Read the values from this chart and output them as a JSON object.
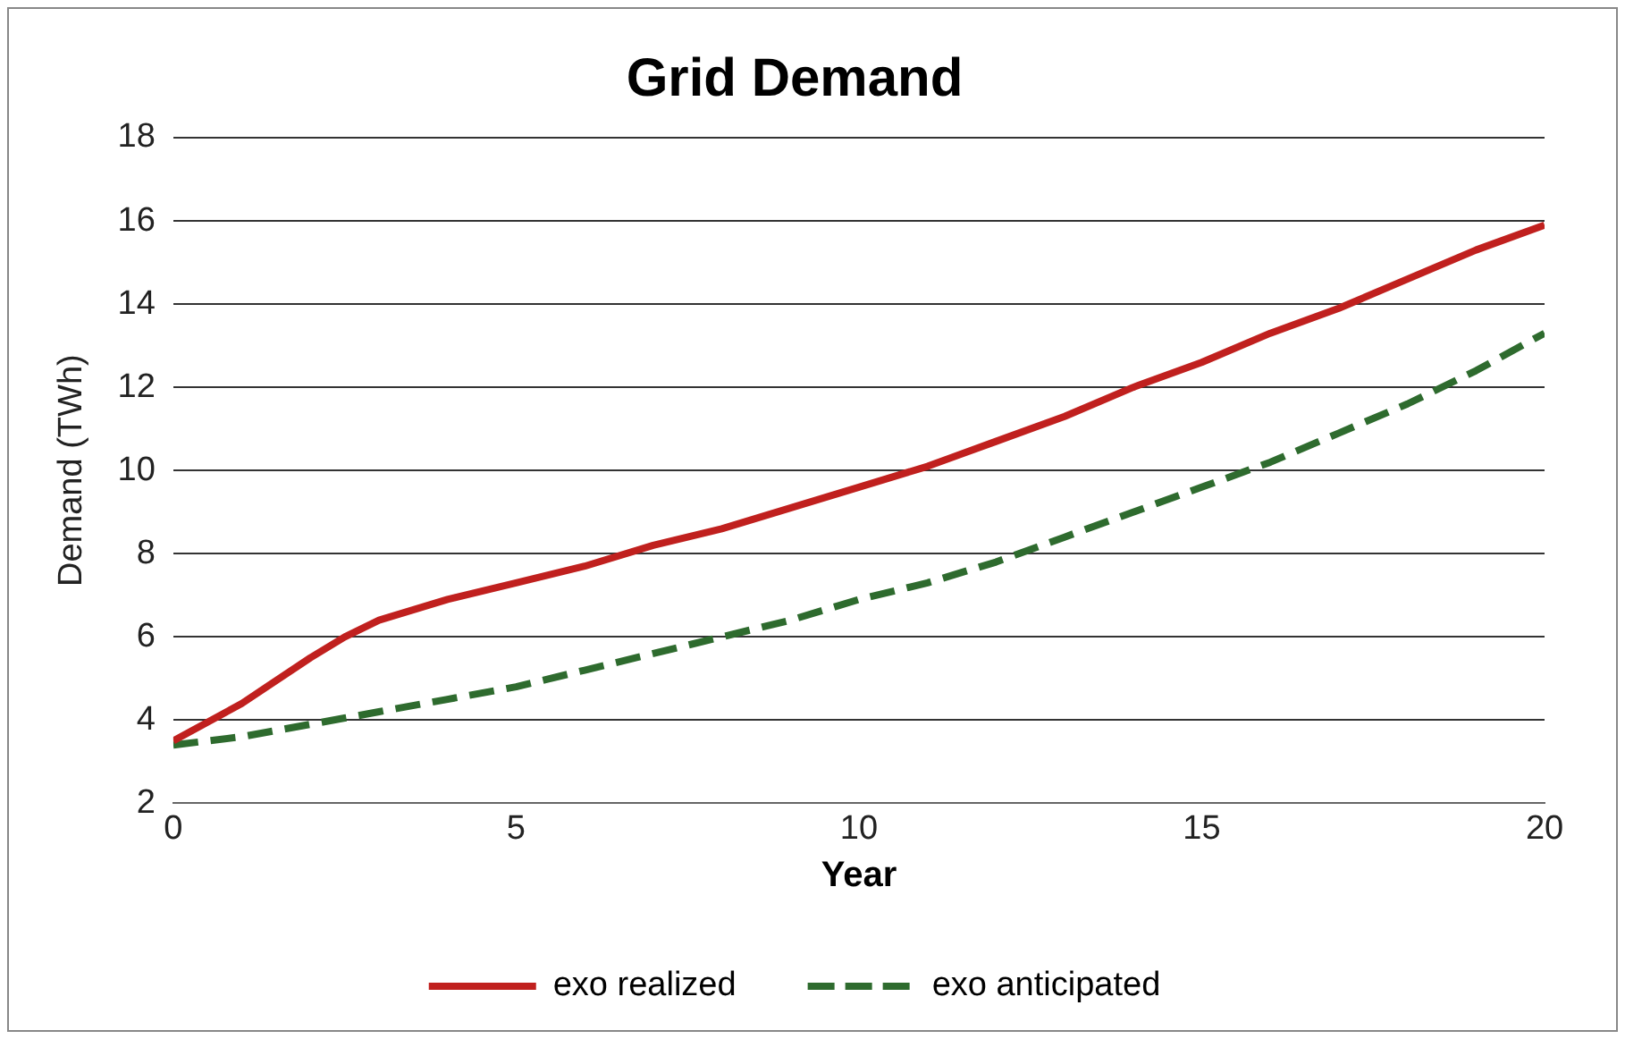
{
  "chart_data": {
    "type": "line",
    "title": "Grid Demand",
    "xlabel": "Year",
    "ylabel": "Demand (TWh)",
    "x": [
      0,
      1,
      2,
      2.5,
      3,
      4,
      5,
      6,
      7,
      8,
      9,
      10,
      11,
      12,
      13,
      14,
      15,
      16,
      17,
      18,
      19,
      20
    ],
    "series": [
      {
        "name": "exo realized",
        "color": "#c0201e",
        "line_style": "solid",
        "values": [
          3.5,
          4.4,
          5.5,
          6.0,
          6.4,
          6.9,
          7.3,
          7.7,
          8.2,
          8.6,
          9.1,
          9.6,
          10.1,
          10.7,
          11.3,
          12.0,
          12.6,
          13.3,
          13.9,
          14.6,
          15.3,
          15.9
        ]
      },
      {
        "name": "exo anticipated",
        "color": "#2e6b2e",
        "line_style": "dashed",
        "values": [
          3.4,
          3.6,
          3.9,
          4.05,
          4.2,
          4.5,
          4.8,
          5.2,
          5.6,
          6.0,
          6.4,
          6.9,
          7.3,
          7.8,
          8.4,
          9.0,
          9.6,
          10.2,
          10.9,
          11.6,
          12.4,
          13.3
        ]
      }
    ],
    "xlim": [
      0,
      20
    ],
    "xticks": [
      0,
      5,
      10,
      15,
      20
    ],
    "ylim": [
      2,
      18
    ],
    "yticks": [
      2,
      4,
      6,
      8,
      10,
      12,
      14,
      16,
      18
    ],
    "grid": "y",
    "legend": "bottom",
    "marker": "none"
  }
}
